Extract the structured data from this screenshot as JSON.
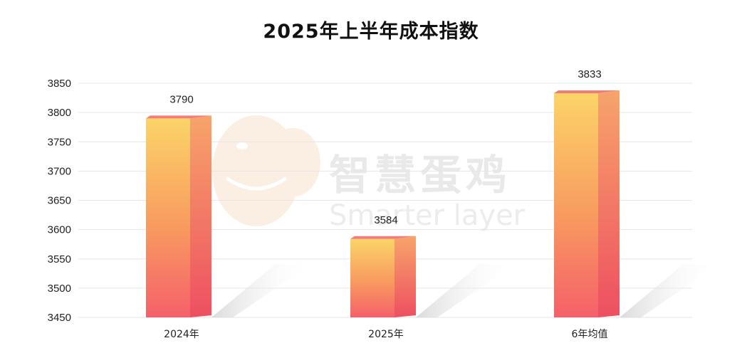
{
  "chart_data": {
    "type": "bar",
    "title": "2025年上半年成本指数",
    "categories": [
      "2024年",
      "2025年",
      "6年均值"
    ],
    "values": [
      3790,
      3584,
      3833
    ],
    "ylim": [
      3450,
      3850
    ],
    "yticks": [
      3450,
      3500,
      3550,
      3600,
      3650,
      3700,
      3750,
      3800,
      3850
    ],
    "grid": true,
    "colors": {
      "bar_top": "#fbd266",
      "bar_bottom": "#f6616b",
      "side": "#f58a5c",
      "cap": "#f47c78"
    }
  },
  "watermark": {
    "chinese": "智慧蛋鸡",
    "english": "Smarter layer"
  }
}
